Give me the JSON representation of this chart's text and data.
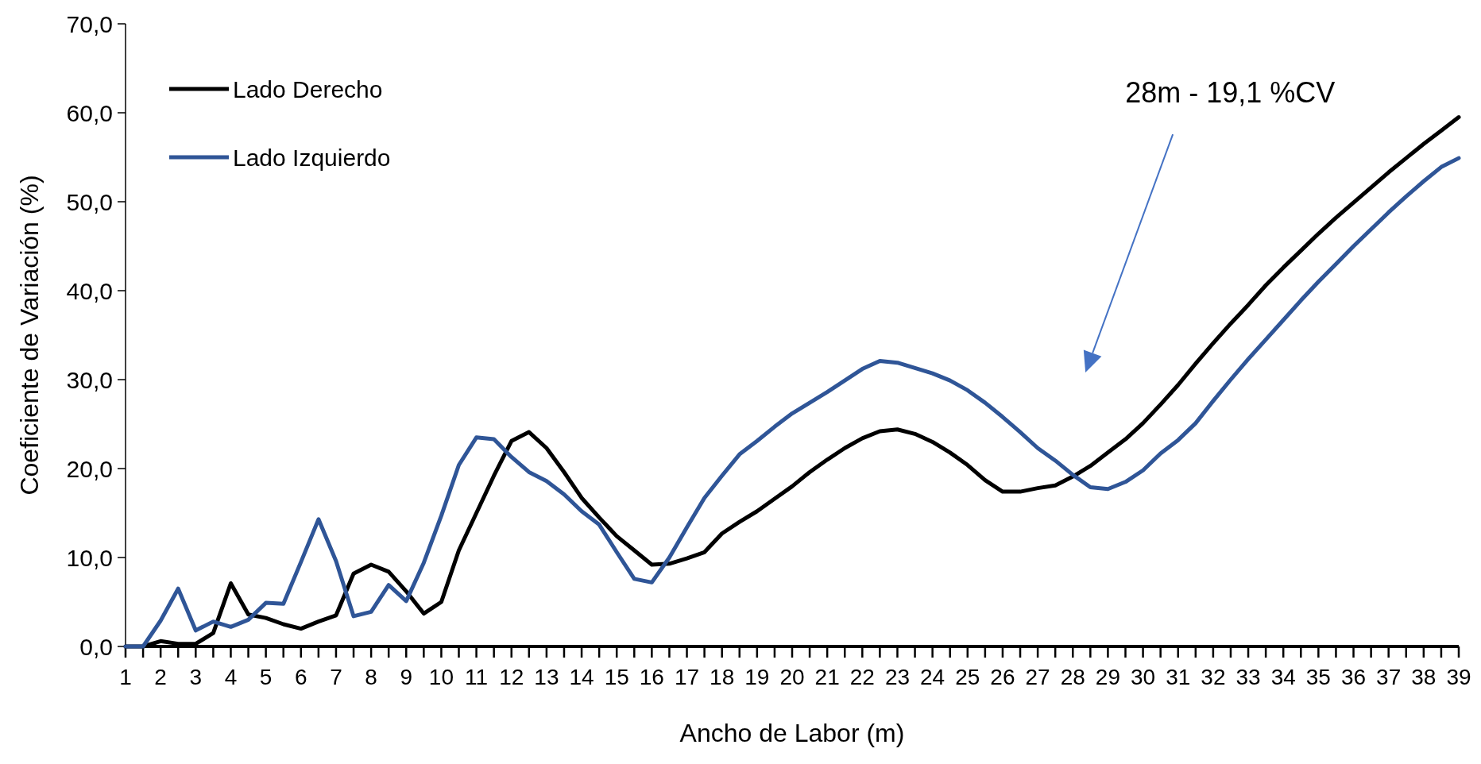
{
  "chart_data": {
    "type": "line",
    "xlabel": "Ancho de Labor (m)",
    "ylabel": "Coeficiente de Variación (%)",
    "x": [
      1,
      1.5,
      2,
      2.5,
      3,
      3.5,
      4,
      4.5,
      5,
      5.5,
      6,
      6.5,
      7,
      7.5,
      8,
      8.5,
      9,
      9.5,
      10,
      10.5,
      11,
      11.5,
      12,
      12.5,
      13,
      13.5,
      14,
      14.5,
      15,
      15.5,
      16,
      16.5,
      17,
      17.5,
      18,
      18.5,
      19,
      19.5,
      20,
      20.5,
      21,
      21.5,
      22,
      22.5,
      23,
      23.5,
      24,
      24.5,
      25,
      25.5,
      26,
      26.5,
      27,
      27.5,
      28,
      28.5,
      29,
      29.5,
      30,
      30.5,
      31,
      31.5,
      32,
      32.5,
      33,
      33.5,
      34,
      34.5,
      35,
      35.5,
      36,
      36.5,
      37,
      37.5,
      38,
      38.5,
      39
    ],
    "series": [
      {
        "name": "Lado Derecho",
        "color": "#000000",
        "values": [
          0,
          0,
          0.6,
          0.3,
          0.3,
          1.5,
          7.1,
          3.6,
          3.2,
          2.5,
          2.0,
          2.8,
          3.5,
          8.2,
          9.2,
          8.4,
          6.2,
          3.7,
          5.0,
          10.8,
          15.0,
          19.2,
          23.1,
          24.1,
          22.3,
          19.6,
          16.7,
          14.5,
          12.4,
          10.8,
          9.2,
          9.3,
          9.9,
          10.6,
          12.7,
          14.0,
          15.2,
          16.6,
          18.0,
          19.6,
          21.0,
          22.3,
          23.4,
          24.2,
          24.4,
          23.9,
          23.0,
          21.8,
          20.4,
          18.7,
          17.4,
          17.4,
          17.8,
          18.1,
          19.1,
          20.3,
          21.8,
          23.3,
          25.1,
          27.2,
          29.4,
          31.8,
          34.1,
          36.3,
          38.4,
          40.6,
          42.6,
          44.5,
          46.4,
          48.2,
          49.9,
          51.6,
          53.3,
          54.9,
          56.5,
          58.0,
          59.5
        ]
      },
      {
        "name": "Lado Izquierdo",
        "color": "#2f5597",
        "values": [
          0,
          0,
          2.9,
          6.5,
          1.8,
          2.8,
          2.2,
          3.0,
          4.9,
          4.8,
          9.5,
          14.3,
          9.6,
          3.4,
          3.9,
          6.9,
          5.1,
          9.4,
          14.7,
          20.4,
          23.5,
          23.3,
          21.3,
          19.6,
          18.6,
          17.1,
          15.2,
          13.7,
          10.6,
          7.6,
          7.2,
          10.0,
          13.4,
          16.7,
          19.2,
          21.6,
          23.1,
          24.7,
          26.2,
          27.4,
          28.6,
          29.9,
          31.2,
          32.1,
          31.9,
          31.3,
          30.7,
          29.9,
          28.8,
          27.4,
          25.8,
          24.1,
          22.3,
          20.9,
          19.3,
          17.9,
          17.7,
          18.5,
          19.8,
          21.7,
          23.2,
          25.1,
          27.6,
          30.0,
          32.3,
          34.5,
          36.7,
          38.9,
          41.0,
          43.0,
          45.0,
          46.9,
          48.8,
          50.6,
          52.3,
          53.9,
          54.9
        ]
      }
    ],
    "xlim": [
      1,
      39
    ],
    "xticks": [
      1,
      {
        "value": 1.5,
        "label": null
      },
      2,
      {
        "value": 2.5,
        "label": null
      },
      3,
      {
        "value": 3.5,
        "label": null
      },
      4,
      {
        "value": 4.5,
        "label": null
      },
      5,
      {
        "value": 5.5,
        "label": null
      },
      6,
      {
        "value": 6.5,
        "label": null
      },
      7,
      {
        "value": 7.5,
        "label": null
      },
      8,
      {
        "value": 8.5,
        "label": null
      },
      9,
      {
        "value": 9.5,
        "label": null
      },
      10,
      {
        "value": 10.5,
        "label": null
      },
      11,
      {
        "value": 11.5,
        "label": null
      },
      12,
      {
        "value": 12.5,
        "label": null
      },
      13,
      {
        "value": 13.5,
        "label": null
      },
      14,
      {
        "value": 14.5,
        "label": null
      },
      15,
      {
        "value": 15.5,
        "label": null
      },
      16,
      {
        "value": 16.5,
        "label": null
      },
      17,
      {
        "value": 17.5,
        "label": null
      },
      18,
      {
        "value": 18.5,
        "label": null
      },
      19,
      {
        "value": 19.5,
        "label": null
      },
      20,
      {
        "value": 20.5,
        "label": null
      },
      21,
      {
        "value": 21.5,
        "label": null
      },
      22,
      {
        "value": 22.5,
        "label": null
      },
      23,
      {
        "value": 23.5,
        "label": null
      },
      24,
      {
        "value": 24.5,
        "label": null
      },
      25,
      {
        "value": 25.5,
        "label": null
      },
      26,
      {
        "value": 26.5,
        "label": null
      },
      27,
      {
        "value": 27.5,
        "label": null
      },
      28,
      {
        "value": 28.5,
        "label": null
      },
      29,
      {
        "value": 29.5,
        "label": null
      },
      30,
      {
        "value": 30.5,
        "label": null
      },
      31,
      {
        "value": 31.5,
        "label": null
      },
      32,
      {
        "value": 32.5,
        "label": null
      },
      33,
      {
        "value": 33.5,
        "label": null
      },
      34,
      {
        "value": 34.5,
        "label": null
      },
      35,
      {
        "value": 35.5,
        "label": null
      },
      36,
      {
        "value": 36.5,
        "label": null
      },
      37,
      {
        "value": 37.5,
        "label": null
      },
      38,
      {
        "value": 38.5,
        "label": null
      },
      39
    ],
    "ylim": [
      0,
      70
    ],
    "yticks": [
      {
        "value": 0,
        "label": "0,0"
      },
      {
        "value": 10,
        "label": "10,0"
      },
      {
        "value": 20,
        "label": "20,0"
      },
      {
        "value": 30,
        "label": "30,0"
      },
      {
        "value": 40,
        "label": "40,0"
      },
      {
        "value": 50,
        "label": "50,0"
      },
      {
        "value": 60,
        "label": "60,0"
      },
      {
        "value": 70,
        "label": "70,0"
      }
    ],
    "grid": false,
    "legend": "top left",
    "marker": "none",
    "line_style": "solid",
    "annotations": [
      "28m - 19,1 %CV"
    ]
  }
}
